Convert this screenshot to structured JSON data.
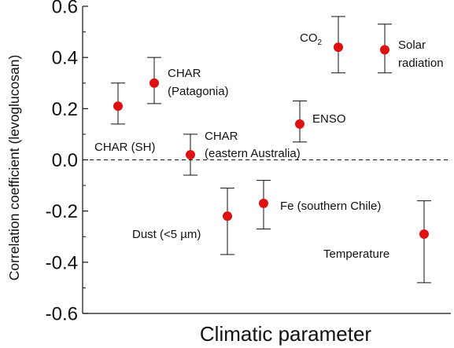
{
  "chart_data": {
    "type": "scatter",
    "title": "",
    "xlabel": "Climatic parameter",
    "ylabel": "Correlation coefficient (levoglucosan)",
    "ylim": [
      -0.6,
      0.6
    ],
    "y_ticks": [
      "0.6",
      "0.4",
      "0.2",
      "0.0",
      "-0.2",
      "-0.4",
      "-0.6"
    ],
    "y_tick_values": [
      0.6,
      0.4,
      0.2,
      0.0,
      -0.2,
      -0.4,
      -0.6
    ],
    "reference_line": {
      "y": 0.0,
      "style": "dashed"
    },
    "grid": false,
    "marker_color": "#dd1111",
    "points": [
      {
        "label": "CHAR (SH)",
        "value": 0.21,
        "err_low": 0.14,
        "err_high": 0.3
      },
      {
        "label": "CHAR (Patagonia)",
        "label_lines": [
          "CHAR",
          "(Patagonia)"
        ],
        "value": 0.3,
        "err_low": 0.22,
        "err_high": 0.4
      },
      {
        "label": "CHAR (eastern Australia)",
        "label_lines": [
          "CHAR",
          "(eastern Australia)"
        ],
        "value": 0.02,
        "err_low": -0.06,
        "err_high": 0.1
      },
      {
        "label": "Dust (<5 µm)",
        "value": -0.22,
        "err_low": -0.37,
        "err_high": -0.11
      },
      {
        "label": "Fe (southern Chile)",
        "value": -0.17,
        "err_low": -0.27,
        "err_high": -0.08
      },
      {
        "label": "ENSO",
        "value": 0.14,
        "err_low": 0.07,
        "err_high": 0.23
      },
      {
        "label": "CO2",
        "label_main": "CO",
        "label_sub": "2",
        "value": 0.44,
        "err_low": 0.34,
        "err_high": 0.56
      },
      {
        "label": "Solar radiation",
        "label_lines": [
          "Solar",
          "radiation"
        ],
        "value": 0.43,
        "err_low": 0.34,
        "err_high": 0.53
      },
      {
        "label": "Temperature",
        "value": -0.29,
        "err_low": -0.48,
        "err_high": -0.16
      }
    ]
  }
}
